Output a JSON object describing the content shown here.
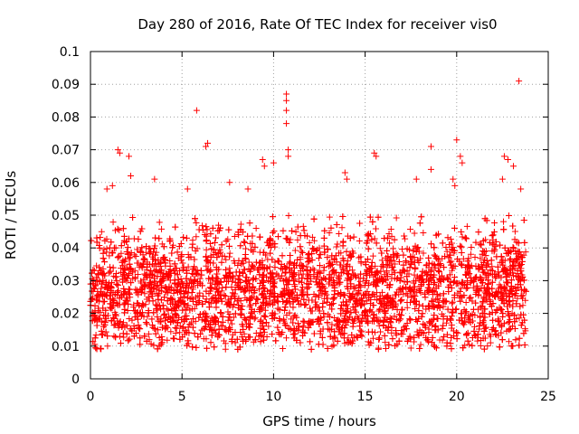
{
  "chart_data": {
    "type": "scatter",
    "title": "Day 280 of 2016, Rate Of TEC Index for receiver vis0",
    "xlabel": "GPS time / hours",
    "ylabel": "ROTI / TECUs",
    "xlim": [
      0,
      25
    ],
    "ylim": [
      0,
      0.1
    ],
    "xticks": [
      0,
      5,
      10,
      15,
      20,
      25
    ],
    "xtick_labels": [
      "0",
      "5",
      "10",
      "15",
      "20",
      "25"
    ],
    "yticks": [
      0,
      0.01,
      0.02,
      0.03,
      0.04,
      0.05,
      0.06,
      0.07,
      0.08,
      0.09,
      0.1
    ],
    "ytick_labels": [
      "0",
      "0.01",
      "0.02",
      "0.03",
      "0.04",
      "0.05",
      "0.06",
      "0.07",
      "0.08",
      "0.09",
      "0.1"
    ],
    "grid": true,
    "marker": "+",
    "marker_color": "#ff0000",
    "series": [
      {
        "name": "ROTI",
        "description": "dense cloud of samples, most between 0.005 and 0.05 TECU over 0-24 h",
        "x_range": [
          0,
          23.8
        ],
        "bulk_y_range": [
          0.005,
          0.05
        ],
        "outliers": [
          {
            "x": 5.8,
            "y": 0.082
          },
          {
            "x": 6.3,
            "y": 0.071
          },
          {
            "x": 6.4,
            "y": 0.072
          },
          {
            "x": 1.5,
            "y": 0.07
          },
          {
            "x": 1.6,
            "y": 0.069
          },
          {
            "x": 2.1,
            "y": 0.068
          },
          {
            "x": 2.2,
            "y": 0.062
          },
          {
            "x": 3.5,
            "y": 0.061
          },
          {
            "x": 9.4,
            "y": 0.067
          },
          {
            "x": 9.5,
            "y": 0.065
          },
          {
            "x": 10.0,
            "y": 0.066
          },
          {
            "x": 10.7,
            "y": 0.087
          },
          {
            "x": 10.7,
            "y": 0.085
          },
          {
            "x": 10.7,
            "y": 0.082
          },
          {
            "x": 10.7,
            "y": 0.078
          },
          {
            "x": 10.8,
            "y": 0.07
          },
          {
            "x": 10.8,
            "y": 0.068
          },
          {
            "x": 13.9,
            "y": 0.063
          },
          {
            "x": 14.0,
            "y": 0.061
          },
          {
            "x": 15.5,
            "y": 0.069
          },
          {
            "x": 15.6,
            "y": 0.068
          },
          {
            "x": 17.8,
            "y": 0.061
          },
          {
            "x": 18.6,
            "y": 0.071
          },
          {
            "x": 18.6,
            "y": 0.064
          },
          {
            "x": 19.8,
            "y": 0.061
          },
          {
            "x": 19.9,
            "y": 0.059
          },
          {
            "x": 20.0,
            "y": 0.073
          },
          {
            "x": 20.2,
            "y": 0.068
          },
          {
            "x": 20.3,
            "y": 0.066
          },
          {
            "x": 22.5,
            "y": 0.061
          },
          {
            "x": 22.6,
            "y": 0.068
          },
          {
            "x": 22.8,
            "y": 0.067
          },
          {
            "x": 23.1,
            "y": 0.065
          },
          {
            "x": 23.4,
            "y": 0.091
          },
          {
            "x": 23.5,
            "y": 0.058
          },
          {
            "x": 0.9,
            "y": 0.058
          },
          {
            "x": 1.2,
            "y": 0.059
          },
          {
            "x": 5.3,
            "y": 0.058
          },
          {
            "x": 7.6,
            "y": 0.06
          },
          {
            "x": 8.6,
            "y": 0.058
          }
        ]
      }
    ]
  }
}
